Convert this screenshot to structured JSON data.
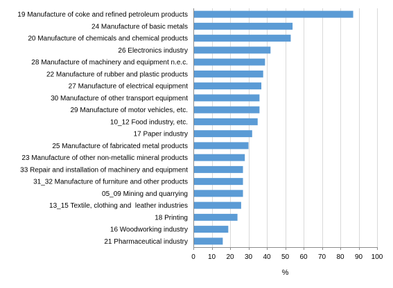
{
  "chart_data": {
    "type": "bar",
    "orientation": "horizontal",
    "categories": [
      "19 Manufacture of coke and refined petroleum products",
      "24 Manufacture of basic metals",
      "20 Manufacture of chemicals and chemical products",
      "26 Electronics industry",
      "28 Manufacture of machinery and equipment n.e.c.",
      "22 Manufacture of rubber and plastic products",
      "27 Manufacture of electrical equipment",
      "30 Manufacture of other transport equipment",
      "29 Manufacture of motor vehicles, etc.",
      "10_12 Food industry, etc.",
      "17 Paper industry",
      "25 Manufacture of fabricated metal products",
      "23 Manufacture of other non-metallic mineral products",
      "33 Repair and installation of machinery and equipment",
      "31_32 Manufacture of furniture and other products",
      "05_09 Mining and quarrying",
      "13_15 Textile, clothing and  leather industries",
      "18 Printing",
      "16 Woodworking industry",
      "21 Pharmaceutical industry"
    ],
    "values": [
      87,
      54,
      53,
      42,
      39,
      38,
      37,
      36,
      36,
      35,
      32,
      30,
      28,
      27,
      27,
      27,
      26,
      24,
      19,
      16
    ],
    "xlabel": "%",
    "xlim": [
      0,
      100
    ],
    "xticks": [
      0,
      10,
      20,
      30,
      40,
      50,
      60,
      70,
      80,
      90,
      100
    ],
    "grid": true,
    "bar_color": "#5b9bd5",
    "grid_color": "#d9d9d9",
    "axis_color": "#8c8c8c"
  }
}
